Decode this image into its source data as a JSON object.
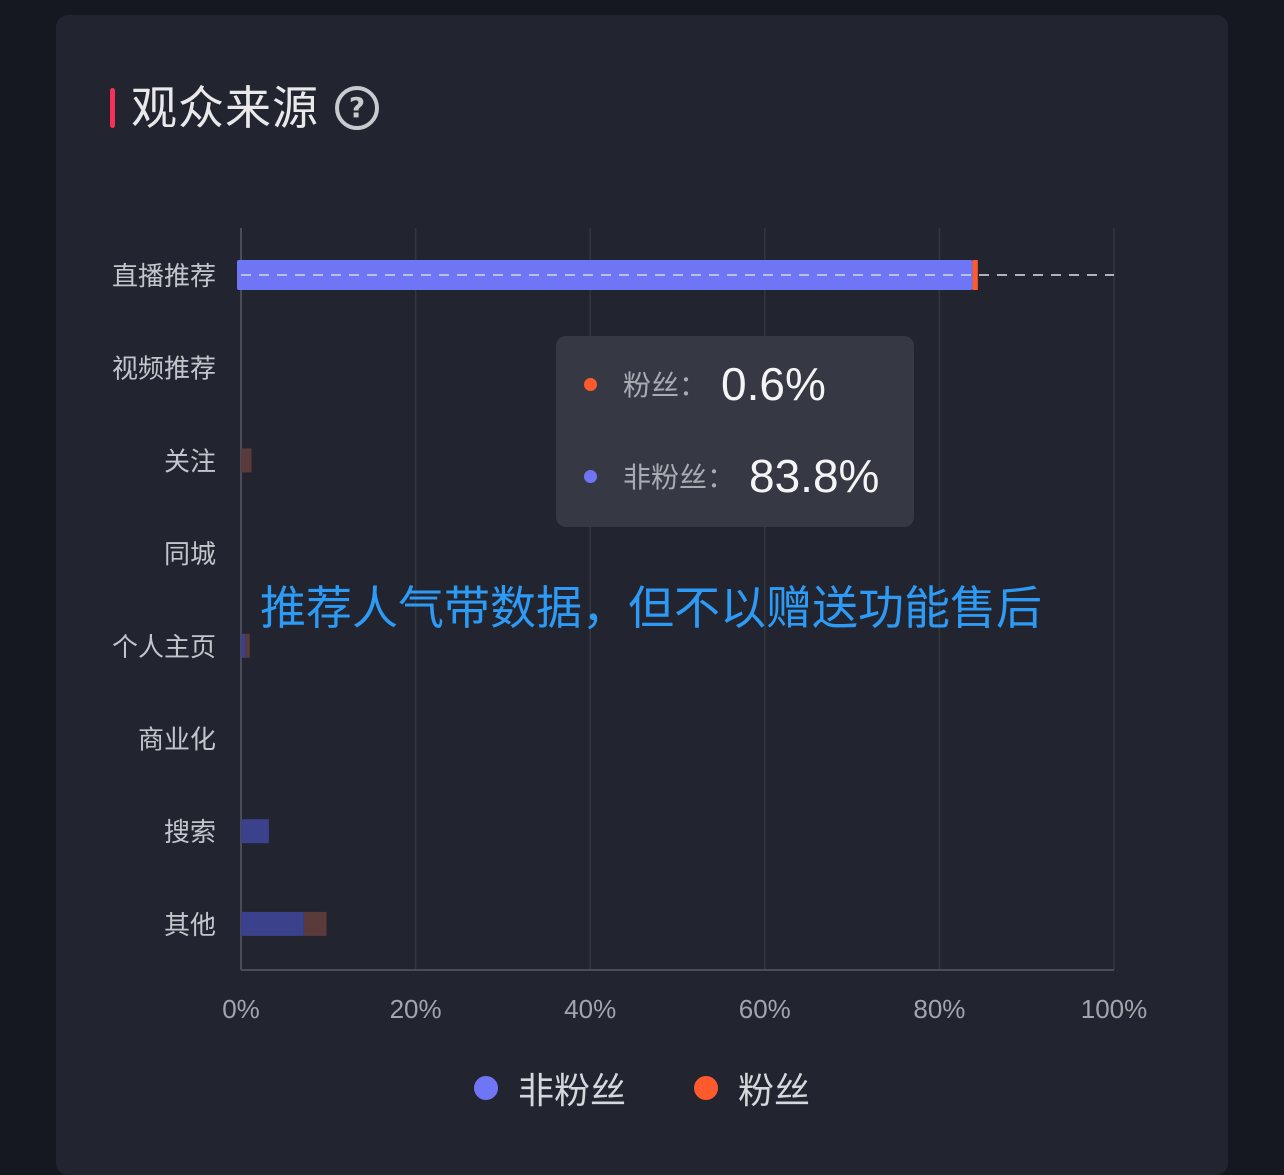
{
  "title": "观众来源",
  "help_icon": "question-circle-icon",
  "overlay_text": "推荐人气带数据，但不以赠送功能售后",
  "colors": {
    "non_fans": "#6f76f5",
    "fans": "#ff5a2e",
    "non_fans_dim": "#3b418a",
    "fans_dim": "#5a3a3a",
    "accent": "#f5315b"
  },
  "tooltip": {
    "rows": [
      {
        "label": "粉丝：",
        "value": "0.6%",
        "color": "#ff5a2e"
      },
      {
        "label": "非粉丝：",
        "value": "83.8%",
        "color": "#6f76f5"
      }
    ]
  },
  "legend": [
    {
      "label": "非粉丝",
      "color": "#6f76f5"
    },
    {
      "label": "粉丝",
      "color": "#ff5a2e"
    }
  ],
  "chart_data": {
    "type": "bar",
    "orientation": "horizontal",
    "stacked": true,
    "categories": [
      "直播推荐",
      "视频推荐",
      "关注",
      "同城",
      "个人主页",
      "商业化",
      "搜索",
      "其他"
    ],
    "series": [
      {
        "name": "非粉丝",
        "values": [
          83.8,
          0,
          0,
          0,
          0.5,
          0,
          3.2,
          7.2
        ]
      },
      {
        "name": "粉丝",
        "values": [
          0.6,
          0,
          1.2,
          0,
          0.5,
          0,
          0,
          2.6
        ]
      }
    ],
    "xlim": [
      0,
      100
    ],
    "xticks": [
      "0%",
      "20%",
      "40%",
      "60%",
      "80%",
      "100%"
    ],
    "highlighted_category": "直播推荐",
    "grid": true,
    "legend_position": "bottom"
  }
}
